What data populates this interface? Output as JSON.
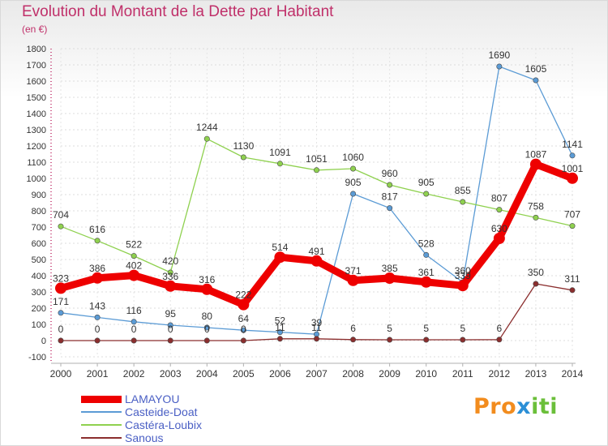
{
  "header": {
    "title": "Evolution du Montant de la Dette par Habitant",
    "subtitle": "(en €)"
  },
  "logo": {
    "part1": "Pro",
    "part2": "x",
    "part3": "iti"
  },
  "chart_data": {
    "type": "line",
    "title": "Evolution du Montant de la Dette par Habitant",
    "subtitle": "(en €)",
    "x": [
      "2000",
      "2001",
      "2002",
      "2003",
      "2004",
      "2005",
      "2006",
      "2007",
      "2008",
      "2009",
      "2010",
      "2011",
      "2012",
      "2013",
      "2014"
    ],
    "ylim": [
      -100,
      1800
    ],
    "yticks": [
      -100,
      0,
      100,
      200,
      300,
      400,
      500,
      600,
      700,
      800,
      900,
      1000,
      1100,
      1200,
      1300,
      1400,
      1500,
      1600,
      1700,
      1800
    ],
    "grid": true,
    "legend_position": "bottom-left",
    "series": [
      {
        "name": "LAMAYOU",
        "color": "#ee0000",
        "values": [
          323,
          386,
          402,
          336,
          316,
          222,
          514,
          491,
          371,
          385,
          361,
          339,
          630,
          1087,
          1001
        ],
        "labels": [
          "323",
          "386",
          "402",
          "336",
          "316",
          "222",
          "514",
          "491",
          "371",
          "385",
          "361",
          "339",
          "630",
          "1087",
          "1001"
        ]
      },
      {
        "name": "Casteide-Doat",
        "color": "#5b9bd5",
        "values": [
          171,
          143,
          116,
          95,
          80,
          64,
          52,
          39,
          905,
          817,
          528,
          360,
          1690,
          1605,
          1141
        ],
        "labels": [
          "171",
          "143",
          "116",
          "95",
          "80",
          "64",
          "52",
          "39",
          "905",
          "817",
          "528",
          "360",
          "1690",
          "1605",
          "1141"
        ]
      },
      {
        "name": "Castéra-Loubix",
        "color": "#8fd14f",
        "values": [
          704,
          616,
          522,
          420,
          1244,
          1130,
          1091,
          1051,
          1060,
          960,
          905,
          855,
          807,
          758,
          707
        ],
        "labels": [
          "704",
          "616",
          "522",
          "420",
          "1244",
          "1130",
          "1091",
          "1051",
          "1060",
          "960",
          "905",
          "855",
          "807",
          "758",
          "707"
        ]
      },
      {
        "name": "Sanous",
        "color": "#8b2e2e",
        "values": [
          0,
          0,
          0,
          0,
          0,
          0,
          11,
          11,
          6,
          5,
          5,
          5,
          6,
          350,
          311
        ],
        "labels": [
          "0",
          "0",
          "0",
          "0",
          "0",
          "0",
          "11",
          "11",
          "6",
          "5",
          "5",
          "5",
          "6",
          "350",
          "311"
        ]
      }
    ]
  }
}
